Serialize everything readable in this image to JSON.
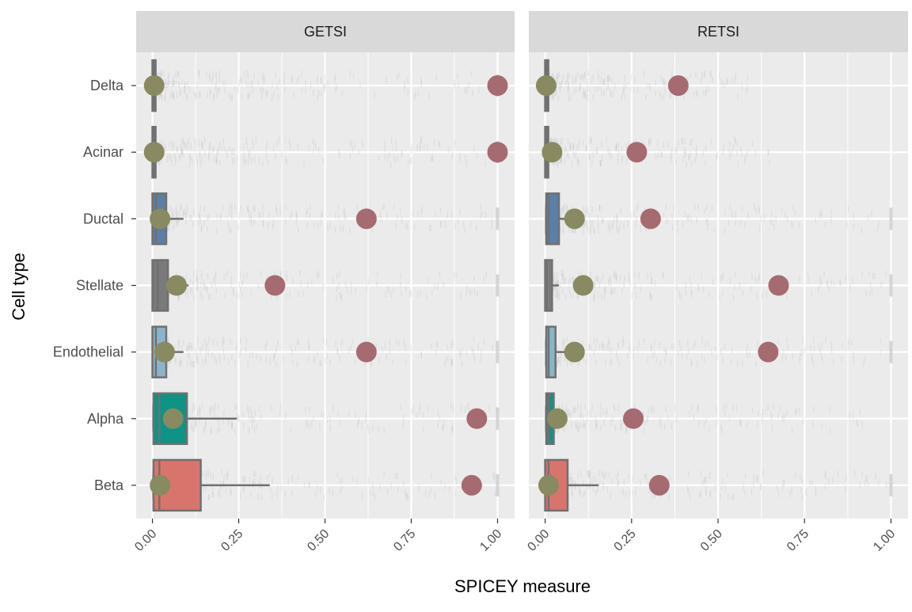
{
  "chart_data": {
    "type": "boxplot",
    "xlabel": "SPICEY measure",
    "ylabel": "Cell type",
    "xlim": [
      0,
      1
    ],
    "x_ticks": [
      "0.00",
      "0.25",
      "0.50",
      "0.75",
      "1.00"
    ],
    "x_tick_values": [
      0,
      0.25,
      0.5,
      0.75,
      1.0
    ],
    "categories": [
      "Delta",
      "Acinar",
      "Ductal",
      "Stellate",
      "Endothelial",
      "Alpha",
      "Beta"
    ],
    "grid": true,
    "legend": "none",
    "colors": {
      "Beta": "#d9746c",
      "Alpha": "#0e9384",
      "Endothelial": "#8ab4c9",
      "Stellate": "#7a7a7a",
      "Ductal": "#5b7fa6",
      "Acinar": "#7a7a7a",
      "Delta": "#7a7a7a",
      "box_outline": "#707070",
      "median_point": "#898a61",
      "max_point": "#a56b71",
      "jitter": "#bdbdbd"
    },
    "panels": [
      {
        "name": "GETSI",
        "boxes": [
          {
            "category": "Delta",
            "q1": 0.0,
            "median": 0.003,
            "q3": 0.007,
            "whisker_high": 0.012,
            "mean_point": 0.005,
            "max_point": 1.0,
            "jitter_max": 1.0
          },
          {
            "category": "Acinar",
            "q1": 0.0,
            "median": 0.003,
            "q3": 0.007,
            "whisker_high": 0.012,
            "mean_point": 0.005,
            "max_point": 1.0,
            "jitter_max": 1.0
          },
          {
            "category": "Ductal",
            "q1": 0.0,
            "median": 0.01,
            "q3": 0.04,
            "whisker_high": 0.09,
            "mean_point": 0.022,
            "max_point": 0.62,
            "jitter_max": 1.0
          },
          {
            "category": "Stellate",
            "q1": 0.0,
            "median": 0.015,
            "q3": 0.045,
            "whisker_high": 0.105,
            "mean_point": 0.07,
            "max_point": 0.355,
            "jitter_max": 1.0
          },
          {
            "category": "Endothelial",
            "q1": 0.0,
            "median": 0.01,
            "q3": 0.04,
            "whisker_high": 0.09,
            "mean_point": 0.035,
            "max_point": 0.62,
            "jitter_max": 1.0
          },
          {
            "category": "Alpha",
            "q1": 0.003,
            "median": 0.02,
            "q3": 0.1,
            "whisker_high": 0.245,
            "mean_point": 0.06,
            "max_point": 0.94,
            "jitter_max": 1.0
          },
          {
            "category": "Beta",
            "q1": 0.003,
            "median": 0.02,
            "q3": 0.14,
            "whisker_high": 0.34,
            "mean_point": 0.022,
            "max_point": 0.925,
            "jitter_max": 1.0
          }
        ]
      },
      {
        "name": "RETSI",
        "boxes": [
          {
            "category": "Delta",
            "q1": 0.0,
            "median": 0.003,
            "q3": 0.007,
            "whisker_high": 0.012,
            "mean_point": 0.003,
            "max_point": 0.385,
            "jitter_max": 0.6
          },
          {
            "category": "Acinar",
            "q1": 0.0,
            "median": 0.003,
            "q3": 0.007,
            "whisker_high": 0.012,
            "mean_point": 0.02,
            "max_point": 0.265,
            "jitter_max": 0.65
          },
          {
            "category": "Ductal",
            "q1": 0.003,
            "median": 0.01,
            "q3": 0.04,
            "whisker_high": 0.08,
            "mean_point": 0.085,
            "max_point": 0.305,
            "jitter_max": 1.0
          },
          {
            "category": "Stellate",
            "q1": 0.0,
            "median": 0.005,
            "q3": 0.02,
            "whisker_high": 0.04,
            "mean_point": 0.11,
            "max_point": 0.675,
            "jitter_max": 1.0
          },
          {
            "category": "Endothelial",
            "q1": 0.003,
            "median": 0.01,
            "q3": 0.03,
            "whisker_high": 0.07,
            "mean_point": 0.085,
            "max_point": 0.645,
            "jitter_max": 1.0
          },
          {
            "category": "Alpha",
            "q1": 0.003,
            "median": 0.01,
            "q3": 0.025,
            "whisker_high": 0.05,
            "mean_point": 0.035,
            "max_point": 0.255,
            "jitter_max": 0.95
          },
          {
            "category": "Beta",
            "q1": 0.0,
            "median": 0.01,
            "q3": 0.065,
            "whisker_high": 0.155,
            "mean_point": 0.01,
            "max_point": 0.33,
            "jitter_max": 1.0
          }
        ]
      }
    ]
  }
}
